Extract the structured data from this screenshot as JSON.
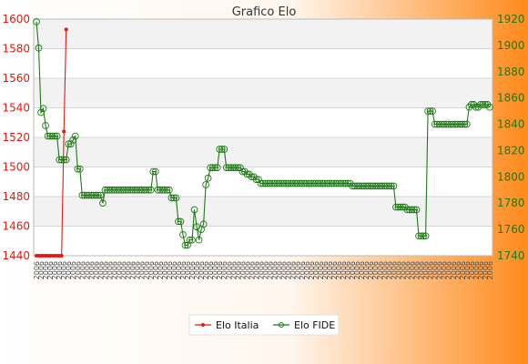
{
  "chart_data": {
    "type": "line",
    "title": "Grafico Elo",
    "grid": true,
    "legend_position": "bottom",
    "colors": {
      "italia": "#e8180f",
      "fide": "#1f7a16",
      "bg_gradient_start": "#ffffff",
      "bg_gradient_end": "#ff8a1c",
      "band": "#f2f2f2",
      "grid": "#d6d6d6"
    },
    "y_left": {
      "ticks": [
        1440,
        1460,
        1480,
        1500,
        1520,
        1540,
        1560,
        1580,
        1600
      ],
      "lim": [
        1440,
        1600
      ]
    },
    "y_right": {
      "ticks": [
        1740,
        1760,
        1780,
        1800,
        1820,
        1840,
        1860,
        1880,
        1900,
        1920
      ],
      "lim": [
        1740,
        1920
      ]
    },
    "x_tick_label": "2006",
    "series": [
      {
        "name": "Elo Italia",
        "axis": "left",
        "values": [
          1440,
          1440,
          1440,
          1440,
          1440,
          1440,
          1440,
          1440,
          1440,
          1440,
          1440,
          1440,
          1524,
          1593
        ]
      },
      {
        "name": "Elo FIDE",
        "axis": "right",
        "values": [
          1918,
          1898,
          1849,
          1852,
          1839,
          1831,
          1831,
          1831,
          1831,
          1831,
          1813,
          1813,
          1813,
          1813,
          1825,
          1825,
          1828,
          1831,
          1806,
          1806,
          1786,
          1786,
          1786,
          1786,
          1786,
          1786,
          1786,
          1786,
          1786,
          1780,
          1790,
          1790,
          1790,
          1790,
          1790,
          1790,
          1790,
          1790,
          1790,
          1790,
          1790,
          1790,
          1790,
          1790,
          1790,
          1790,
          1790,
          1790,
          1790,
          1790,
          1790,
          1804,
          1804,
          1790,
          1790,
          1790,
          1790,
          1790,
          1790,
          1784,
          1784,
          1784,
          1766,
          1766,
          1756,
          1748,
          1748,
          1752,
          1752,
          1775,
          1762,
          1752,
          1760,
          1764,
          1794,
          1799,
          1807,
          1807,
          1807,
          1807,
          1821,
          1821,
          1821,
          1807,
          1807,
          1807,
          1807,
          1807,
          1807,
          1807,
          1804,
          1804,
          1802,
          1802,
          1800,
          1800,
          1798,
          1798,
          1795,
          1795,
          1795,
          1795,
          1795,
          1795,
          1795,
          1795,
          1795,
          1795,
          1795,
          1795,
          1795,
          1795,
          1795,
          1795,
          1795,
          1795,
          1795,
          1795,
          1795,
          1795,
          1795,
          1795,
          1795,
          1795,
          1795,
          1795,
          1795,
          1795,
          1795,
          1795,
          1795,
          1795,
          1795,
          1795,
          1795,
          1795,
          1795,
          1795,
          1793,
          1793,
          1793,
          1793,
          1793,
          1793,
          1793,
          1793,
          1793,
          1793,
          1793,
          1793,
          1793,
          1793,
          1793,
          1793,
          1793,
          1793,
          1793,
          1777,
          1777,
          1777,
          1777,
          1777,
          1775,
          1775,
          1775,
          1775,
          1775,
          1755,
          1755,
          1755,
          1755,
          1850,
          1850,
          1850,
          1840,
          1840,
          1840,
          1840,
          1840,
          1840,
          1840,
          1840,
          1840,
          1840,
          1840,
          1840,
          1840,
          1840,
          1840,
          1853,
          1855,
          1855,
          1853,
          1853,
          1855,
          1855,
          1855,
          1855,
          1853
        ]
      }
    ]
  }
}
